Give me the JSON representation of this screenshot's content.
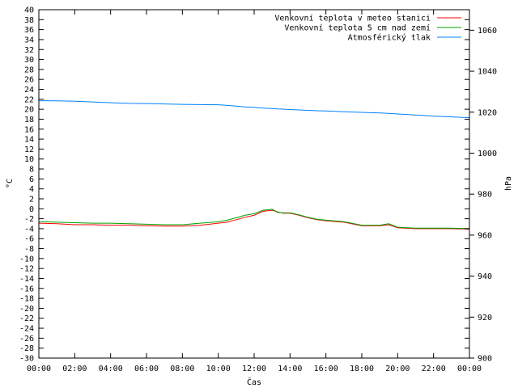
{
  "chart_data": {
    "type": "line",
    "title": "",
    "xlabel": "Čas",
    "ylabel": "°C",
    "y2label": "hPa",
    "xlim": [
      "00:00",
      "24:00"
    ],
    "ylim": [
      -30,
      40
    ],
    "y2lim": [
      900,
      1070
    ],
    "x_ticks": [
      "00:00",
      "02:00",
      "04:00",
      "06:00",
      "08:00",
      "10:00",
      "12:00",
      "14:00",
      "16:00",
      "18:00",
      "20:00",
      "22:00",
      "00:00"
    ],
    "y_ticks": [
      40,
      38,
      36,
      34,
      32,
      30,
      28,
      26,
      24,
      22,
      20,
      18,
      16,
      14,
      12,
      10,
      8,
      6,
      4,
      2,
      0,
      -2,
      -4,
      -6,
      -8,
      -10,
      -12,
      -14,
      -16,
      -18,
      -20,
      -22,
      -24,
      -26,
      -28,
      -30
    ],
    "y2_ticks": [
      1060,
      1040,
      1020,
      1000,
      980,
      960,
      940,
      920,
      900
    ],
    "grid": false,
    "legend_position": "top-right",
    "x_hours": [
      0,
      1,
      2,
      3,
      4,
      5,
      6,
      7,
      8,
      9,
      10,
      10.5,
      11,
      11.5,
      12,
      12.5,
      13,
      13.3,
      13.6,
      14,
      14.5,
      15,
      15.5,
      16,
      17,
      18,
      19,
      19.5,
      20,
      21,
      22,
      23,
      24
    ],
    "series": [
      {
        "name": "Venkovní teplota v meteo stanici",
        "color": "#ff0000",
        "axis": "left",
        "values": [
          -2.9,
          -3.0,
          -3.2,
          -3.2,
          -3.3,
          -3.3,
          -3.4,
          -3.5,
          -3.5,
          -3.3,
          -2.9,
          -2.7,
          -2.2,
          -1.7,
          -1.3,
          -0.5,
          -0.3,
          -0.6,
          -0.9,
          -0.9,
          -1.3,
          -1.8,
          -2.2,
          -2.4,
          -2.7,
          -3.4,
          -3.4,
          -3.2,
          -3.8,
          -4.0,
          -4.0,
          -4.0,
          -4.1
        ]
      },
      {
        "name": "Venkovní teplota 5 cm nad zemí",
        "color": "#00a000",
        "axis": "left",
        "values": [
          -2.6,
          -2.7,
          -2.8,
          -2.9,
          -2.9,
          -3.0,
          -3.1,
          -3.2,
          -3.2,
          -2.9,
          -2.6,
          -2.3,
          -1.8,
          -1.3,
          -1.0,
          -0.3,
          -0.1,
          -0.7,
          -0.8,
          -0.8,
          -1.2,
          -1.7,
          -2.1,
          -2.3,
          -2.6,
          -3.3,
          -3.3,
          -3.0,
          -3.7,
          -3.9,
          -3.9,
          -3.9,
          -4.0
        ]
      },
      {
        "name": "Atmosférický tlak",
        "color": "#0080ff",
        "axis": "right",
        "values": [
          1025.6,
          1025.5,
          1025.3,
          1025.0,
          1024.6,
          1024.3,
          1024.2,
          1024.0,
          1023.8,
          1023.7,
          1023.6,
          1023.3,
          1023.0,
          1022.6,
          1022.3,
          1022.0,
          1021.8,
          1021.6,
          1021.5,
          1021.3,
          1021.1,
          1020.9,
          1020.7,
          1020.6,
          1020.2,
          1019.9,
          1019.6,
          1019.4,
          1019.1,
          1018.6,
          1018.1,
          1017.7,
          1017.3
        ]
      }
    ]
  }
}
